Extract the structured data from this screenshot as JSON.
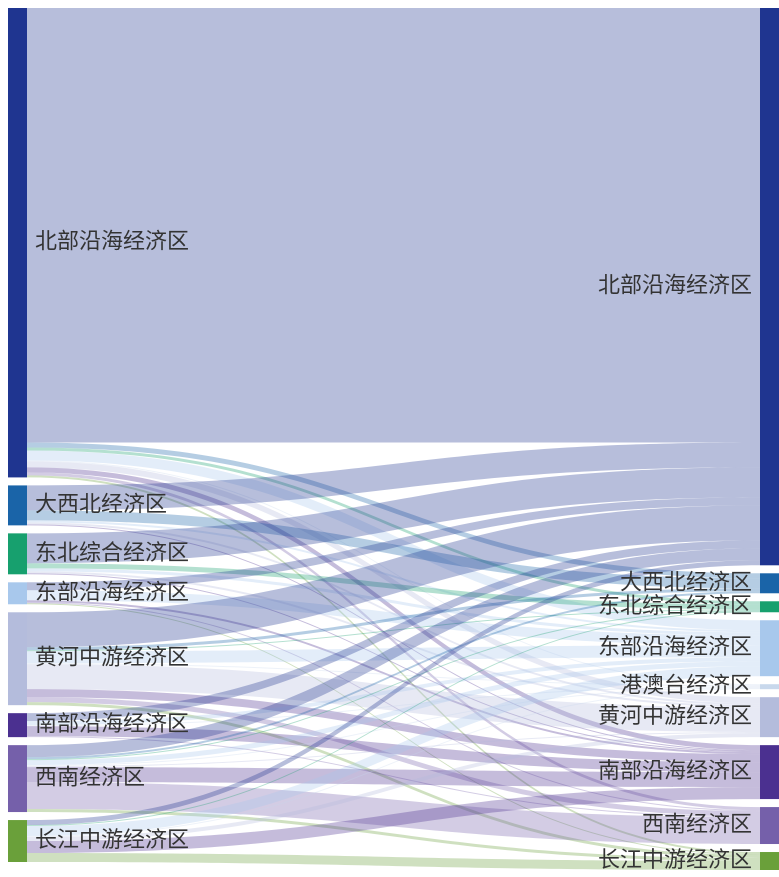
{
  "chart_data": {
    "type": "sankey",
    "sources": [
      {
        "name": "北部沿海经济区",
        "color": "#1f3590"
      },
      {
        "name": "大西北经济区",
        "color": "#1a64a8"
      },
      {
        "name": "东北综合经济区",
        "color": "#17a06e"
      },
      {
        "name": "东部沿海经济区",
        "color": "#a8c8ec"
      },
      {
        "name": "黄河中游经济区",
        "color": "#b4bcdc"
      },
      {
        "name": "南部沿海经济区",
        "color": "#4b3090"
      },
      {
        "name": "西南经济区",
        "color": "#7560aa"
      },
      {
        "name": "长江中游经济区",
        "color": "#6aa03a"
      }
    ],
    "targets": [
      {
        "name": "北部沿海经济区",
        "color": "#1f3590"
      },
      {
        "name": "大西北经济区",
        "color": "#1a64a8"
      },
      {
        "name": "东北综合经济区",
        "color": "#17a06e"
      },
      {
        "name": "东部沿海经济区",
        "color": "#a8c8ec"
      },
      {
        "name": "港澳台经济区",
        "color": "#c8d8ec"
      },
      {
        "name": "黄河中游经济区",
        "color": "#b4bcdc"
      },
      {
        "name": "南部沿海经济区",
        "color": "#4b3090"
      },
      {
        "name": "西南经济区",
        "color": "#7560aa"
      },
      {
        "name": "长江中游经济区",
        "color": "#6aa03a"
      }
    ],
    "values": [
      [
        435,
        5,
        3,
        10,
        1,
        6,
        5,
        3,
        2
      ],
      [
        25,
        10,
        0,
        2,
        0,
        2,
        1,
        0,
        0
      ],
      [
        30,
        0,
        5,
        3,
        0,
        2,
        1,
        0,
        0
      ],
      [
        8,
        0,
        0,
        10,
        0,
        0,
        2,
        1,
        1
      ],
      [
        35,
        3,
        1,
        12,
        1,
        25,
        8,
        5,
        3
      ],
      [
        8,
        0,
        0,
        4,
        1,
        0,
        10,
        1,
        0
      ],
      [
        12,
        2,
        1,
        5,
        1,
        1,
        15,
        27,
        3
      ],
      [
        5,
        0,
        1,
        10,
        1,
        4,
        12,
        0,
        9
      ]
    ]
  }
}
